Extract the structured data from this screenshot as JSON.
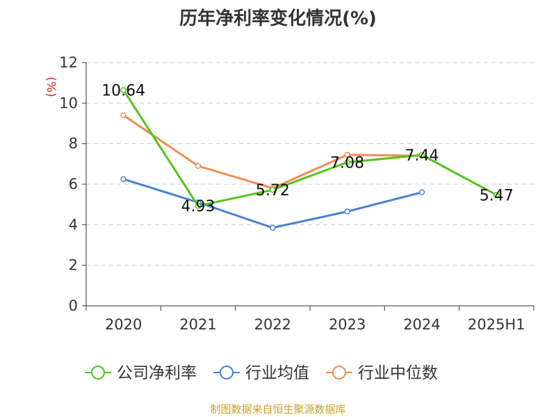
{
  "chart_data": {
    "type": "line",
    "title": "历年净利率变化情况(%)",
    "ylabel": "(%)",
    "xlabel": "",
    "categories": [
      "2020",
      "2021",
      "2022",
      "2023",
      "2024",
      "2025H1"
    ],
    "ylim": [
      0,
      12
    ],
    "yticks": [
      0,
      2,
      4,
      6,
      8,
      10,
      12
    ],
    "grid": "horizontal dashed",
    "legend": "bottom",
    "series": [
      {
        "name": "公司净利率",
        "color": "#52c41a",
        "values": [
          10.64,
          4.93,
          5.72,
          7.08,
          7.44,
          5.47
        ],
        "labels": [
          "10.64",
          "4.93",
          "5.72",
          "7.08",
          "7.44",
          "5.47"
        ]
      },
      {
        "name": "行业均值",
        "color": "#4a7fd6",
        "values": [
          6.25,
          5.1,
          3.85,
          4.65,
          5.6,
          null
        ]
      },
      {
        "name": "行业中位数",
        "color": "#f28c52",
        "values": [
          9.4,
          6.9,
          5.8,
          7.45,
          7.4,
          null
        ]
      }
    ]
  },
  "footer": {
    "source": "制图数据来自恒生聚源数据库",
    "source_color": "#c9a227"
  },
  "colors": {
    "ylabel": "#e02020",
    "axis": "#333333",
    "grid": "#cccccc"
  }
}
